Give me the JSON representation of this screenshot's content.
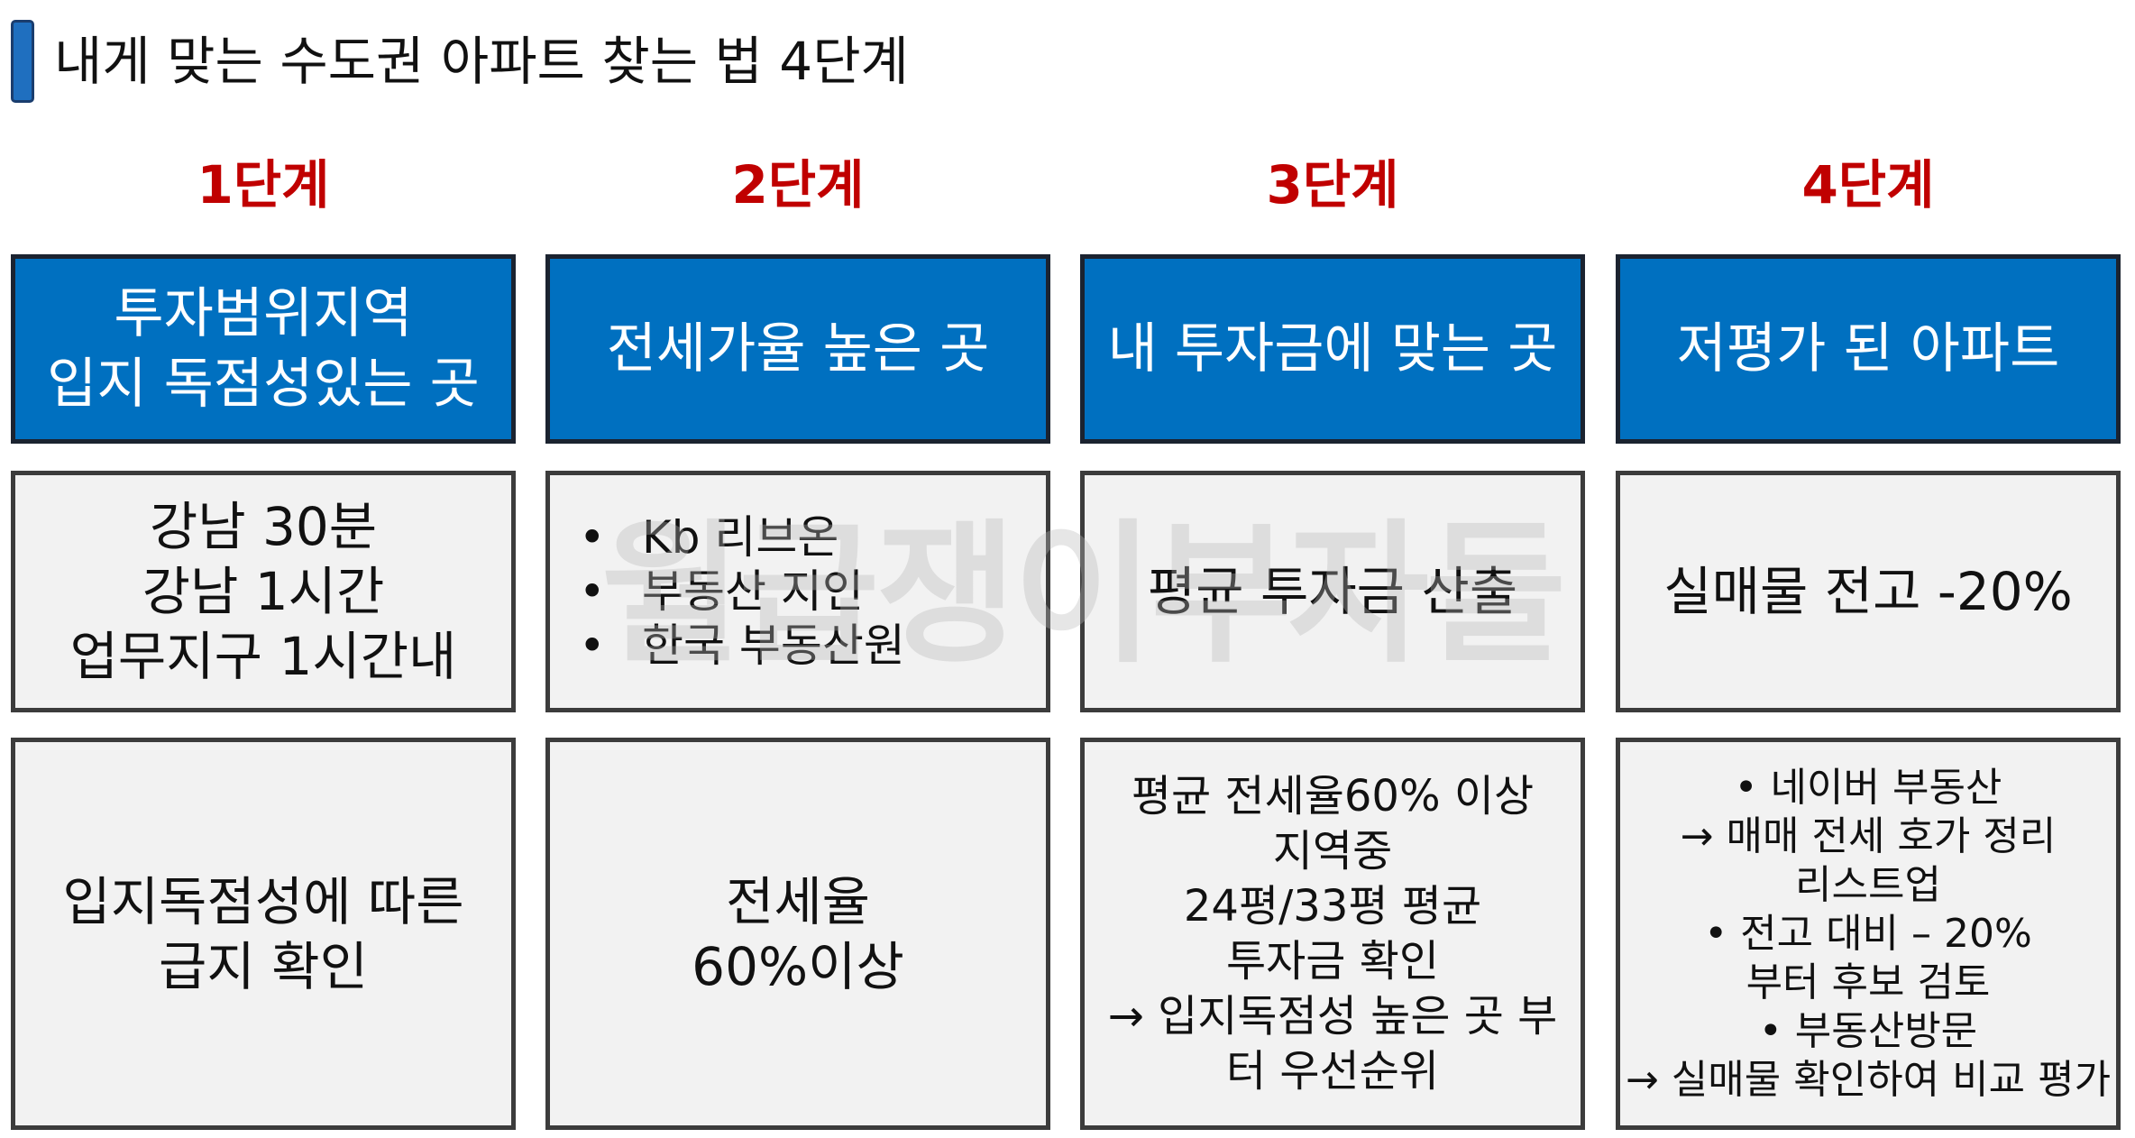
{
  "title": "내게  맞는 수도권 아파트 찾는 법 4단계",
  "steps": [
    {
      "label": "1단계",
      "header": [
        "투자범위지역",
        "입지 독점성있는 곳"
      ],
      "row1": [
        "강남 30분",
        "강남 1시간",
        "업무지구 1시간내"
      ],
      "row2": [
        "입지독점성에 따른",
        "급지 확인"
      ]
    },
    {
      "label": "2단계",
      "header": [
        "전세가율 높은 곳"
      ],
      "row1_bullets": [
        "Kb 리브온",
        "부동산 지인",
        "한국 부동산원"
      ],
      "row2": [
        "전세율",
        "60%이상"
      ]
    },
    {
      "label": "3단계",
      "header": [
        "내 투자금에 맞는 곳"
      ],
      "row1": [
        "평균 투자금 산출"
      ],
      "row2": [
        "평균 전세율60% 이상",
        "지역중",
        "24평/33평 평균",
        "투자금 확인",
        "→ 입지독점성 높은 곳 부",
        "터  우선순위"
      ]
    },
    {
      "label": "4단계",
      "header": [
        "저평가 된 아파트"
      ],
      "row1": [
        "실매물 전고 -20%"
      ],
      "row2": [
        "•   네이버 부동산",
        "→ 매매 전세  호가 정리",
        "리스트업",
        "•    전고 대비 – 20%",
        "부터 후보 검토",
        "•   부동산방문",
        "→ 실매물 확인하여 비교 평가"
      ]
    }
  ],
  "watermark": "월급쟁이부자들",
  "bullet_char": "•",
  "colors": {
    "header_bg": "#0070c0",
    "step_label": "#c00000",
    "body_bg": "#f2f2f2"
  }
}
